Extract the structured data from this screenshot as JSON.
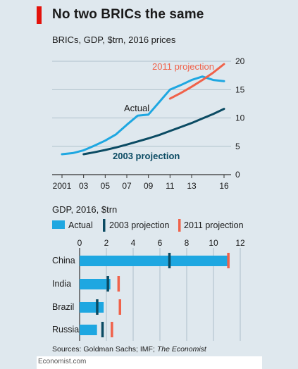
{
  "title": "No two BRICs the same",
  "footer": "Economist.com",
  "sources_prefix": "Sources: Goldman Sachs; IMF; ",
  "sources_italic": "The Economist",
  "colors": {
    "accent": "#e3120b",
    "actual": "#1ea7e1",
    "proj2003": "#0b4b63",
    "proj2011": "#f0624a",
    "grid": "#9fb3c0",
    "background": "#dfe8ee"
  },
  "chart_data": [
    {
      "type": "line",
      "title": "BRICs, GDP, $trn, 2016 prices",
      "x_ticks": [
        "2001",
        "03",
        "05",
        "07",
        "09",
        "11",
        "13",
        "16"
      ],
      "y_ticks": [
        0,
        5,
        10,
        15,
        20
      ],
      "xlim": [
        2000.5,
        2016.5
      ],
      "ylim": [
        0,
        20
      ],
      "grid": true,
      "series": [
        {
          "name": "Actual",
          "key": "actual",
          "x": [
            2001,
            2002,
            2003,
            2004,
            2005,
            2006,
            2007,
            2008,
            2009,
            2010,
            2011,
            2012,
            2013,
            2014,
            2015,
            2016
          ],
          "y": [
            3.6,
            3.8,
            4.3,
            5.1,
            6.0,
            7.1,
            8.8,
            10.4,
            10.6,
            12.8,
            15.0,
            15.8,
            16.7,
            17.3,
            16.7,
            16.5
          ]
        },
        {
          "name": "2003 projection",
          "key": "proj2003",
          "x": [
            2003,
            2004,
            2005,
            2006,
            2007,
            2008,
            2009,
            2010,
            2011,
            2012,
            2013,
            2014,
            2015,
            2016
          ],
          "y": [
            3.6,
            3.95,
            4.35,
            4.8,
            5.3,
            5.85,
            6.4,
            7.0,
            7.7,
            8.4,
            9.1,
            9.9,
            10.7,
            11.6
          ]
        },
        {
          "name": "2011 projection",
          "key": "proj2011",
          "x": [
            2011,
            2012,
            2013,
            2014,
            2015,
            2016
          ],
          "y": [
            13.4,
            14.4,
            15.5,
            16.7,
            18.0,
            19.5
          ]
        }
      ],
      "annotations": [
        "Actual",
        "2003 projection",
        "2011 projection"
      ]
    },
    {
      "type": "bar",
      "orientation": "horizontal",
      "title": "GDP, 2016, $trn",
      "legend": [
        "Actual",
        "2003 projection",
        "2011 projection"
      ],
      "legend_position": "top",
      "x_ticks": [
        0,
        2,
        4,
        6,
        8,
        10,
        12
      ],
      "xlim": [
        0,
        12
      ],
      "grid": true,
      "categories": [
        "China",
        "India",
        "Brazil",
        "Russia"
      ],
      "series": [
        {
          "name": "Actual",
          "key": "actual",
          "values": [
            11.2,
            2.3,
            1.8,
            1.3
          ]
        },
        {
          "name": "2003 projection",
          "key": "proj2003",
          "values": [
            6.7,
            2.1,
            1.3,
            1.7
          ]
        },
        {
          "name": "2011 projection",
          "key": "proj2011",
          "values": [
            11.1,
            2.9,
            3.0,
            2.4
          ]
        }
      ]
    }
  ]
}
